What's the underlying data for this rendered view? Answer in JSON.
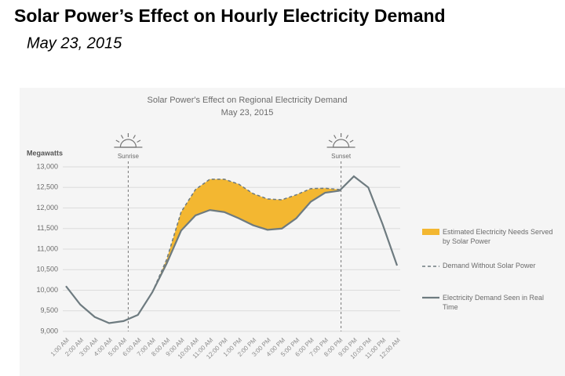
{
  "chart_data": {
    "type": "line",
    "page_title": "Solar Power’s Effect on Hourly Electricity Demand",
    "page_subtitle": "May 23, 2015",
    "title": "Solar Power's Effect on Regional Electricity Demand",
    "subtitle": "May 23, 2015",
    "y_label": "Megawatts",
    "categories": [
      "1:00 AM",
      "2:00 AM",
      "3:00 AM",
      "4:00 AM",
      "5:00 AM",
      "6:00 AM",
      "7:00 AM",
      "8:00 AM",
      "9:00 AM",
      "10:00 AM",
      "11:00 AM",
      "12:00 PM",
      "1:00 PM",
      "2:00 PM",
      "3:00 PM",
      "4:00 PM",
      "5:00 PM",
      "6:00 PM",
      "7:00 PM",
      "8:00 PM",
      "9:00 PM",
      "10:00 PM",
      "11:00 PM",
      "12:00 AM"
    ],
    "series": [
      {
        "name": "Electricity Demand Seen in Real Time",
        "color": "#6e7b80",
        "dashed": false,
        "values": [
          10100,
          9650,
          9350,
          9200,
          9250,
          9400,
          9950,
          10650,
          11450,
          11820,
          11950,
          11900,
          11750,
          11580,
          11470,
          11500,
          11750,
          12150,
          12370,
          12420,
          12770,
          12500,
          11600,
          10600
        ]
      },
      {
        "name": "Demand Without Solar Power",
        "color": "#6e7b80",
        "dashed": true,
        "values": [
          null,
          null,
          null,
          null,
          null,
          null,
          9950,
          10750,
          11900,
          12450,
          12700,
          12700,
          12580,
          12350,
          12220,
          12200,
          12320,
          12470,
          12480,
          12450,
          null,
          null,
          null,
          null
        ]
      }
    ],
    "fill": {
      "name": "Estimated Electricity Needs Served by Solar Power",
      "color": "#f3b731"
    },
    "annotations": [
      {
        "label": "Sunrise",
        "x": "5:00 AM"
      },
      {
        "label": "Sunset",
        "x": "8:00 PM"
      }
    ],
    "ylim": [
      9000,
      13000
    ],
    "yticks": [
      {
        "value": 9000,
        "label": "9,000"
      },
      {
        "value": 9500,
        "label": "9,500"
      },
      {
        "value": 10000,
        "label": "10,000"
      },
      {
        "value": 10500,
        "label": "10,500"
      },
      {
        "value": 11000,
        "label": "11,000"
      },
      {
        "value": 11500,
        "label": "11,500"
      },
      {
        "value": 12000,
        "label": "12,000"
      },
      {
        "value": 12500,
        "label": "12,500"
      },
      {
        "value": 13000,
        "label": "13,000"
      }
    ],
    "grid": true
  }
}
